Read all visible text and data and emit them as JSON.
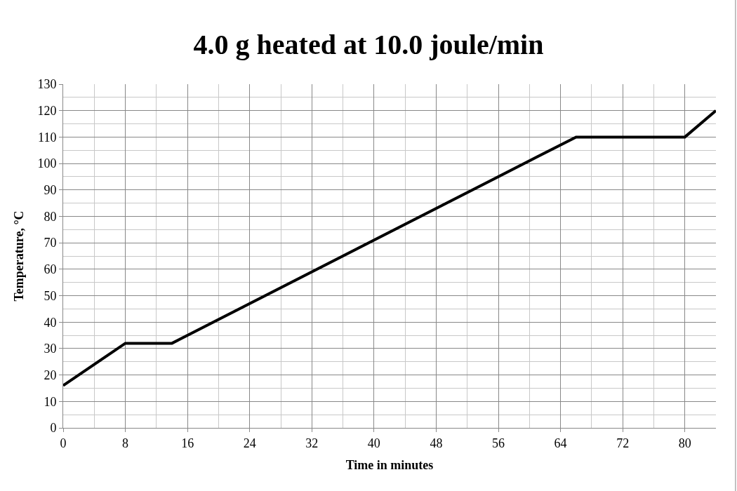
{
  "chart_data": {
    "type": "line",
    "title": "4.0 g heated at 10.0 joule/min",
    "xlabel": "Time in minutes",
    "ylabel": "Temperature, °C",
    "x": [
      0,
      8,
      14,
      66,
      80,
      84
    ],
    "series": [
      {
        "color": "#000000",
        "values": [
          16,
          32,
          32,
          110,
          110,
          120
        ]
      }
    ],
    "xlim": [
      0,
      84
    ],
    "xticks": [
      0,
      8,
      16,
      24,
      32,
      40,
      48,
      56,
      64,
      72,
      80
    ],
    "ylim": [
      0,
      130
    ],
    "yticks": [
      0,
      10,
      20,
      30,
      40,
      50,
      60,
      70,
      80,
      90,
      100,
      110,
      120,
      130
    ],
    "grid": true,
    "legend": false,
    "marker": "none",
    "line_style": "solid"
  }
}
